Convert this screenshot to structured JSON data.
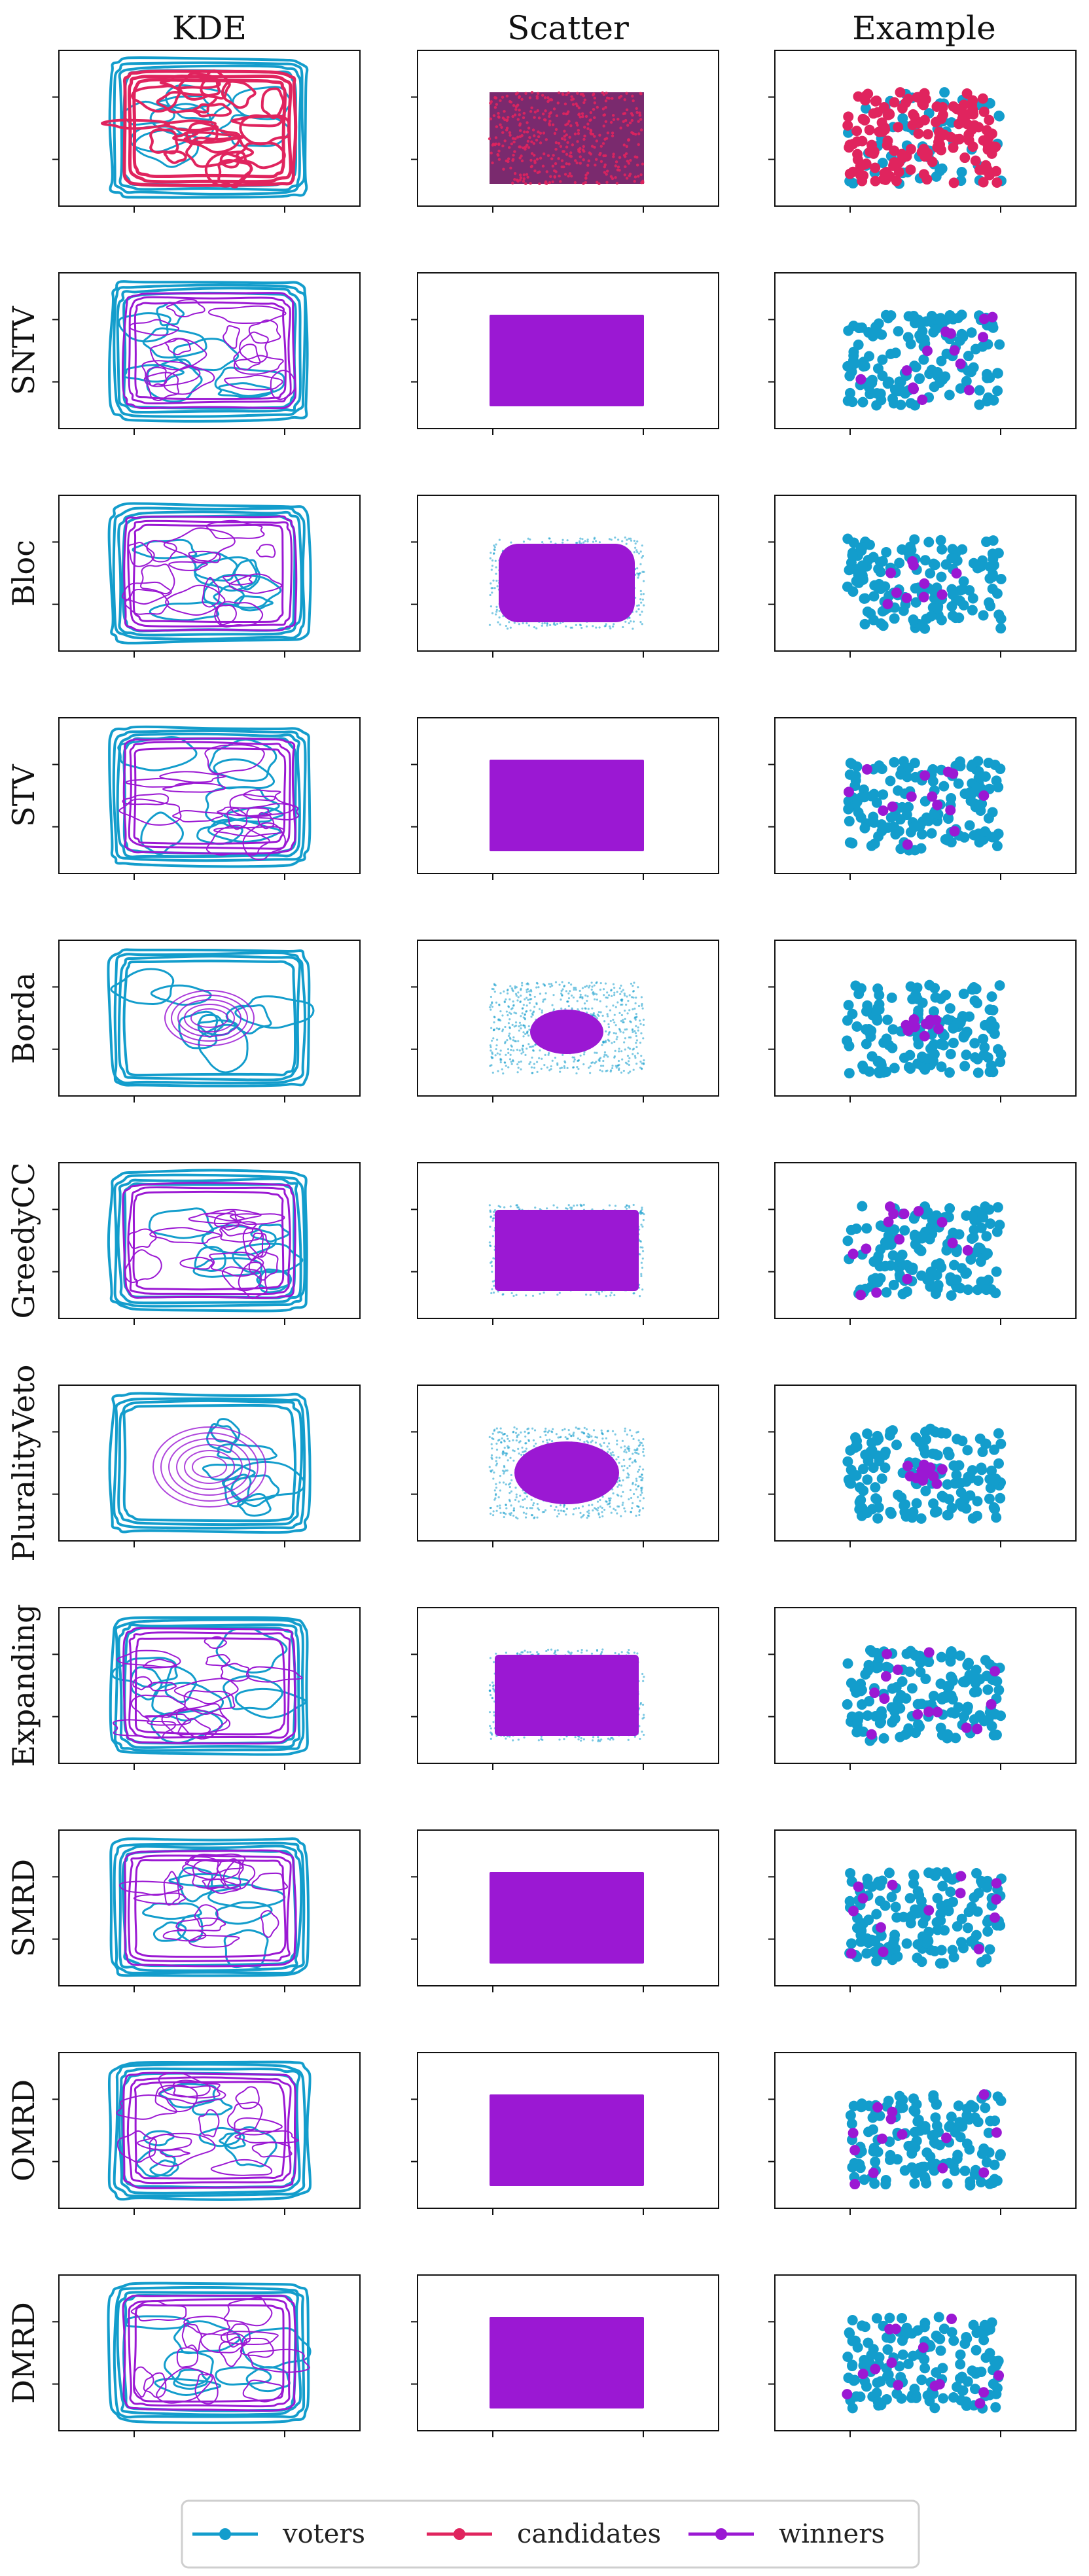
{
  "colors": {
    "voters": "#139dcc",
    "candidates": "#e0245e",
    "winners": "#9b18d3"
  },
  "columns": [
    "KDE",
    "Scatter",
    "Example"
  ],
  "rows": [
    "",
    "SNTV",
    "Bloc",
    "STV",
    "Borda",
    "GreedyCC",
    "PluralityVeto",
    "Expanding",
    "SMRD",
    "OMRD",
    "DMRD"
  ],
  "legend": {
    "location": "bottom-center",
    "items": [
      "voters",
      "candidates",
      "winners"
    ]
  },
  "chart_data": {
    "type": "scatter",
    "layout": "grid 11 rows x 3 columns",
    "columns": [
      "KDE",
      "Scatter",
      "Example"
    ],
    "rows": [
      "",
      "SNTV",
      "Bloc",
      "STV",
      "Borda",
      "GreedyCC",
      "PluralityVeto",
      "Expanding",
      "SMRD",
      "OMRD",
      "DMRD"
    ],
    "series": [
      {
        "name": "voters",
        "color": "#139dcc"
      },
      {
        "name": "candidates",
        "color": "#e0245e"
      },
      {
        "name": "winners",
        "color": "#9b18d3"
      }
    ],
    "tick_labels_shown": false,
    "grid": false,
    "winner_distribution": {
      "SNTV": "uniform",
      "Bloc": "central-with-sparse-edges",
      "STV": "uniform",
      "Borda": "central-ellipse",
      "GreedyCC": "uniform-dense",
      "PluralityVeto": "central-ellipse-large",
      "Expanding": "uniform-dense",
      "SMRD": "uniform",
      "OMRD": "uniform",
      "DMRD": "uniform"
    }
  }
}
